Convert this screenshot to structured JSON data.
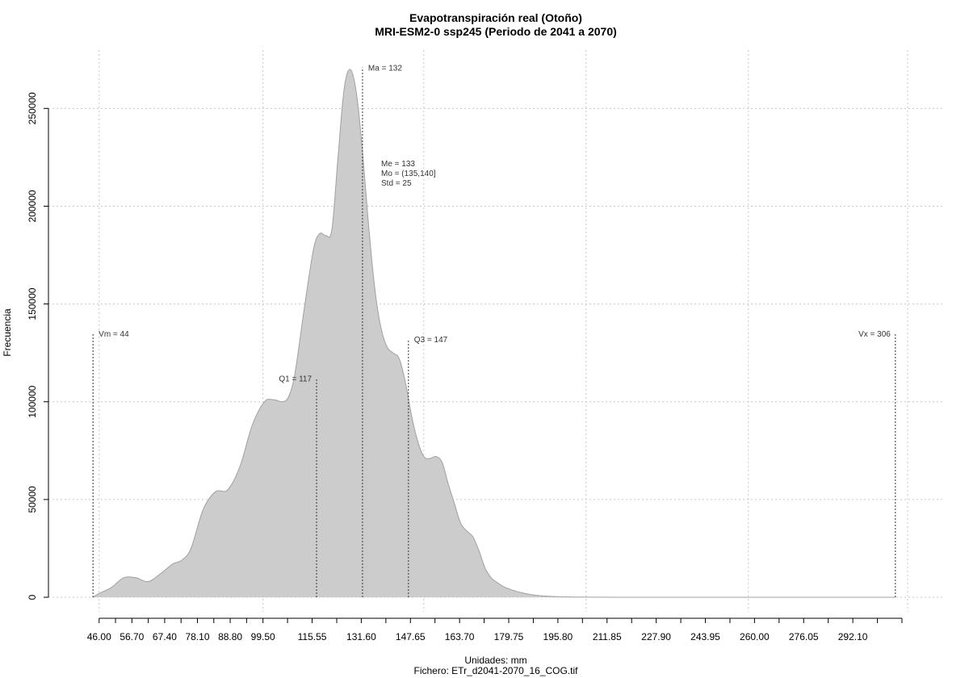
{
  "chart_data": {
    "type": "area",
    "title": "Evapotranspiración real (Otoño)",
    "subtitle": "MRI-ESM2-0 ssp245 (Periodo de 2041 a 2070)",
    "xlabel": "Unidades: mm",
    "ylabel": "Frecuencia",
    "footer": "Fichero: ETr_d2041-2070_16_COG.tif",
    "xlim": [
      40,
      310
    ],
    "ylim": [
      0,
      270000
    ],
    "grid": true,
    "fill_color": "#cccccc",
    "line_color": "#a0a0a0",
    "x_ticks": [
      46.0,
      56.7,
      67.4,
      78.1,
      88.8,
      99.5,
      115.55,
      131.6,
      147.65,
      163.7,
      179.75,
      195.8,
      211.85,
      227.9,
      243.95,
      260.0,
      276.05,
      292.1
    ],
    "x_tick_labels": [
      "46.00",
      "56.70",
      "67.40",
      "78.10",
      "88.80",
      "99.50",
      "115.55",
      "131.60",
      "147.65",
      "163.70",
      "179.75",
      "195.80",
      "211.85",
      "227.90",
      "243.95",
      "260.00",
      "276.05",
      "292.10"
    ],
    "x_minor_ticks": [
      51.35,
      62.05,
      72.75,
      83.45,
      94.15,
      107.52,
      123.58,
      139.63,
      155.67,
      171.72,
      187.77,
      203.82,
      219.88,
      235.93,
      251.98,
      268.03,
      284.08,
      300.13,
      308.15
    ],
    "y_ticks": [
      0,
      50000,
      100000,
      150000,
      200000,
      250000
    ],
    "y_tick_labels": [
      "0",
      "50000",
      "100000",
      "150000",
      "200000",
      "250000"
    ],
    "x_grid": [
      46.0,
      99.5,
      152.0,
      205.0,
      258.0,
      310.0
    ],
    "x": [
      44,
      46,
      50,
      54,
      58,
      62,
      66,
      70,
      73,
      76,
      80,
      84,
      88,
      92,
      96,
      100,
      103,
      106,
      108,
      110,
      113,
      116,
      118,
      120,
      122,
      124,
      126,
      128,
      130,
      132,
      134,
      136,
      138,
      140,
      142,
      144,
      146,
      148,
      150,
      152,
      154,
      156,
      158,
      160,
      162,
      164,
      166,
      168,
      170,
      172,
      174,
      176,
      178,
      180,
      184,
      188,
      192,
      196,
      200,
      205,
      210,
      215,
      220,
      230,
      250,
      306
    ],
    "values": [
      0,
      2000,
      5000,
      10000,
      10000,
      8000,
      12000,
      17000,
      19000,
      25000,
      45000,
      54000,
      55000,
      67000,
      88000,
      100000,
      101000,
      100000,
      103000,
      115000,
      148000,
      178000,
      186000,
      185000,
      188000,
      225000,
      260000,
      270000,
      258000,
      228000,
      190000,
      158000,
      138000,
      128000,
      125000,
      122000,
      110000,
      93000,
      80000,
      72000,
      71000,
      72000,
      69000,
      58000,
      48000,
      38000,
      34000,
      31000,
      24000,
      15000,
      10000,
      7500,
      5500,
      4200,
      2300,
      1100,
      600,
      300,
      150,
      80,
      40,
      20,
      10,
      5,
      2,
      0
    ],
    "markers": [
      {
        "label": "Vm = 44",
        "x": 44,
        "y_top": 135000,
        "anchor": "left"
      },
      {
        "label": "Q1 = 117",
        "x": 117,
        "y_top": 112000,
        "anchor": "right"
      },
      {
        "label": "Ma = 132",
        "x": 132,
        "y_top": 271000,
        "anchor": "left"
      },
      {
        "label": "Q3 = 147",
        "x": 147,
        "y_top": 132000,
        "anchor": "left"
      },
      {
        "label": "Vx = 306",
        "x": 306,
        "y_top": 135000,
        "anchor": "right"
      }
    ],
    "stats_block": [
      "Me = 133",
      "Mo = (135,140]",
      "Std = 25"
    ]
  }
}
